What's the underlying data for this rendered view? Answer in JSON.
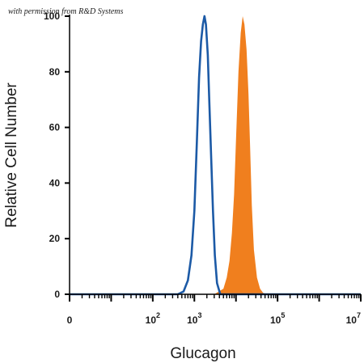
{
  "watermark": "with permission from R&D Systems",
  "chart_data": {
    "type": "area",
    "xlabel": "Glucagon",
    "ylabel": "Relative Cell Number",
    "x_scale": "log",
    "xlim": [
      1,
      10000000
    ],
    "ylim": [
      0,
      100
    ],
    "y_ticks": [
      0,
      20,
      40,
      60,
      80,
      100
    ],
    "x_ticks": [
      {
        "value": 1,
        "base": "0",
        "exp": ""
      },
      {
        "value": 100,
        "base": "10",
        "exp": "2"
      },
      {
        "value": 1000,
        "base": "10",
        "exp": "3"
      },
      {
        "value": 100000,
        "base": "10",
        "exp": "5"
      },
      {
        "value": 10000000,
        "base": "10",
        "exp": "7"
      }
    ],
    "grid": false,
    "series": [
      {
        "style": "filled",
        "color": "#f07f1e",
        "x": [
          1,
          1000,
          3000,
          5000,
          6000,
          7000,
          8000,
          9000,
          10000,
          11500,
          13000,
          14500,
          16000,
          18000,
          20000,
          22000,
          24000,
          27000,
          32000,
          38000,
          45000,
          55000,
          10000000
        ],
        "y": [
          0,
          0,
          0,
          2,
          6,
          12,
          22,
          36,
          55,
          80,
          94,
          100,
          97,
          88,
          72,
          52,
          32,
          16,
          6,
          2,
          0.5,
          0,
          0
        ]
      },
      {
        "style": "outline",
        "color": "#1c5aa6",
        "x": [
          1,
          400,
          550,
          700,
          850,
          1000,
          1150,
          1300,
          1450,
          1600,
          1750,
          1900,
          2100,
          2300,
          2550,
          2800,
          3100,
          3500,
          4200,
          10000000
        ],
        "y": [
          0,
          0,
          1,
          5,
          14,
          30,
          55,
          78,
          91,
          97,
          100,
          97,
          86,
          68,
          48,
          30,
          14,
          4,
          0,
          0
        ]
      }
    ]
  }
}
